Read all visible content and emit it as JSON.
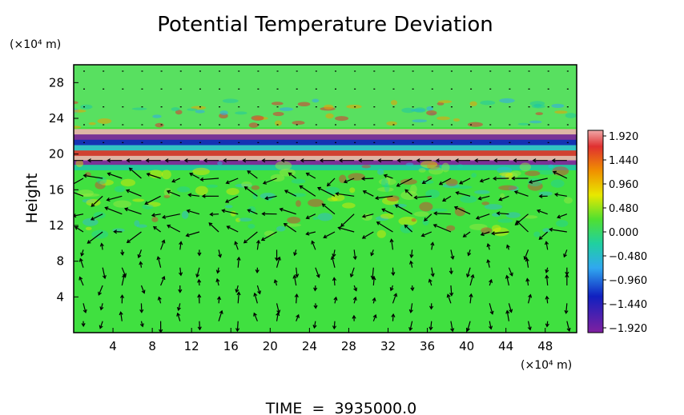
{
  "chart_data": {
    "type": "heatmap",
    "title": "Potential Temperature Deviation",
    "xlabel": "(×10⁴ m)",
    "ylabel": "Height",
    "y_units_label": "(×10⁴ m)",
    "x_ticks": [
      "4",
      "8",
      "12",
      "16",
      "20",
      "24",
      "28",
      "32",
      "36",
      "40",
      "44",
      "48"
    ],
    "x_tick_values": [
      4,
      8,
      12,
      16,
      20,
      24,
      28,
      32,
      36,
      40,
      44,
      48
    ],
    "y_ticks": [
      "4",
      "8",
      "12",
      "16",
      "20",
      "24",
      "28"
    ],
    "y_tick_values": [
      4,
      8,
      12,
      16,
      20,
      24,
      28
    ],
    "xlim": [
      0,
      51.2
    ],
    "ylim": [
      0,
      30
    ],
    "colorbar": {
      "labels": [
        "1.920",
        "1.440",
        "0.960",
        "0.480",
        "0.000",
        "−0.480",
        "−0.960",
        "−1.440",
        "−1.920"
      ],
      "values": [
        1.92,
        1.44,
        0.96,
        0.48,
        0.0,
        -0.48,
        -0.96,
        -1.44,
        -1.92
      ],
      "range": [
        -1.92,
        1.92
      ],
      "colors": [
        "#e8a0a0",
        "#e02020",
        "#f0a000",
        "#e0e000",
        "#30d030",
        "#20c8a0",
        "#30a0f0",
        "#1020c0",
        "#8020a0"
      ]
    },
    "field_bands": [
      {
        "y_from": 19.0,
        "y_to": 23.0,
        "description_values": [
          1.9,
          -1.9
        ]
      },
      {
        "y_from": 0,
        "y_to": 19.0,
        "description_values": [
          0.0
        ]
      },
      {
        "y_from": 23.0,
        "y_to": 30,
        "description_values": [
          0.0
        ]
      }
    ],
    "footer": "TIME  =  3935000.0",
    "grid": false,
    "has_vector_overlay": true
  }
}
